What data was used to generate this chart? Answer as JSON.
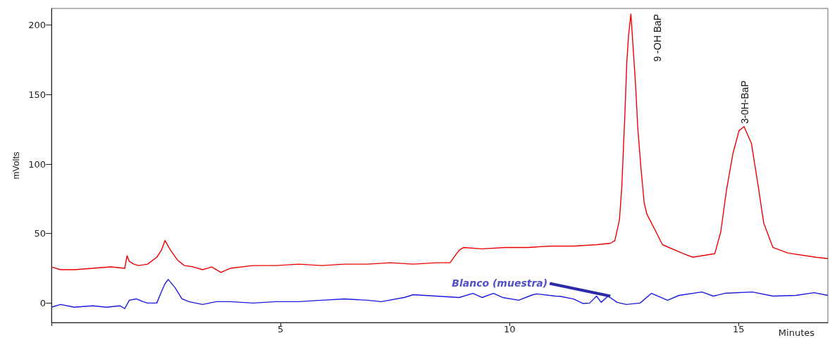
{
  "chart_data": {
    "type": "line",
    "xlabel": "Minutes",
    "ylabel": "mVolts",
    "xlim": [
      0,
      16.95
    ],
    "xticks": [
      {
        "value": 0,
        "label": null
      },
      5,
      10,
      15
    ],
    "ylim": [
      -14,
      212
    ],
    "yticks": [
      0,
      50,
      100,
      150,
      200
    ],
    "grid": false,
    "marker": "none",
    "line_style": "solid",
    "series": [
      {
        "color": "#ee0000",
        "x": [
          0,
          0.2,
          0.5,
          0.9,
          1.3,
          1.6,
          1.65,
          1.7,
          1.8,
          1.9,
          2.1,
          2.3,
          2.4,
          2.48,
          2.6,
          2.75,
          2.9,
          3.1,
          3.3,
          3.5,
          3.7,
          3.9,
          4.4,
          4.9,
          5.4,
          5.9,
          6.4,
          6.9,
          7.4,
          7.9,
          8.4,
          8.7,
          8.9,
          9.0,
          9.4,
          9.9,
          10.4,
          10.9,
          11.4,
          11.9,
          12.2,
          12.3,
          12.4,
          12.45,
          12.52,
          12.56,
          12.6,
          12.65,
          12.75,
          12.8,
          12.87,
          12.94,
          13.0,
          13.34,
          13.8,
          14.0,
          14.48,
          14.61,
          14.74,
          14.88,
          15.01,
          15.12,
          15.28,
          15.42,
          15.55,
          15.75,
          16.08,
          16.68,
          16.95
        ],
        "values": [
          26,
          24,
          24,
          25,
          26,
          25,
          34,
          30,
          28,
          27,
          28,
          33,
          38,
          45,
          38,
          31,
          27,
          26,
          24,
          26,
          22,
          25,
          27,
          27,
          28,
          27,
          28,
          28,
          29,
          28,
          29,
          29,
          38,
          40,
          39,
          40,
          40,
          41,
          41,
          42,
          43,
          45,
          60,
          83,
          137,
          173,
          193,
          208,
          158,
          126,
          97,
          72,
          64,
          42,
          35.5,
          33,
          35.5,
          51,
          82,
          108,
          124,
          127,
          115,
          86,
          57.5,
          40,
          36,
          33,
          32
        ]
      },
      {
        "color": "#1a1ae6",
        "x": [
          0,
          0.2,
          0.5,
          0.9,
          1.2,
          1.5,
          1.6,
          1.7,
          1.85,
          2.0,
          2.1,
          2.3,
          2.4,
          2.48,
          2.55,
          2.7,
          2.85,
          3.0,
          3.3,
          3.6,
          3.9,
          4.4,
          4.9,
          5.4,
          5.9,
          6.4,
          6.9,
          7.2,
          7.7,
          7.9,
          8.4,
          8.9,
          9.2,
          9.4,
          9.65,
          9.85,
          10.2,
          10.5,
          10.6,
          11.0,
          11.1,
          11.4,
          11.6,
          11.75,
          11.9,
          12.0,
          12.15,
          12.35,
          12.55,
          12.85,
          13.1,
          13.45,
          13.7,
          14.2,
          14.45,
          14.7,
          15.3,
          15.75,
          16.25,
          16.65,
          16.95
        ],
        "values": [
          -3,
          -1,
          -3,
          -2,
          -3,
          -2,
          -4,
          2,
          3,
          1,
          0,
          0,
          8,
          14,
          17,
          11,
          3,
          1,
          -1,
          1,
          1,
          0,
          1,
          1,
          2,
          3,
          2,
          1,
          4,
          6,
          5,
          4,
          7,
          4,
          7,
          4,
          2,
          5.9,
          6.6,
          5,
          4.9,
          2.9,
          -0.3,
          0,
          5,
          0.5,
          5,
          0.5,
          -1,
          0,
          7,
          2,
          5.5,
          8,
          5,
          7,
          8,
          5,
          5.5,
          7.5,
          5.5
        ]
      }
    ],
    "annotations": [
      {
        "text": "9 -OH BaP",
        "x": 12.65,
        "y": 208
      },
      {
        "text": "3-0H-BaP",
        "x": 15.12,
        "y": 127
      },
      {
        "text": "Blanco (muestra)",
        "x": 12.2,
        "y": 4
      }
    ]
  }
}
